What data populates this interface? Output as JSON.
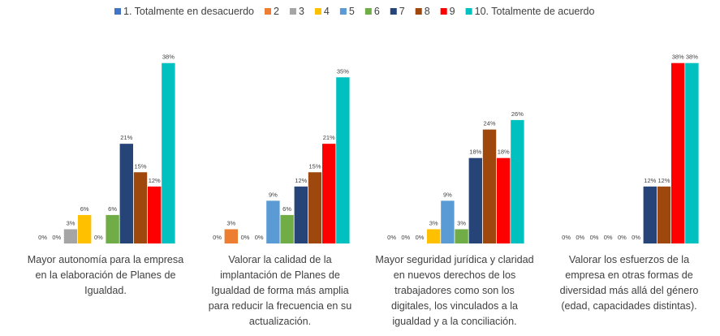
{
  "chart_data": {
    "type": "bar",
    "categories": [
      "Mayor autonomía para la empresa en la elaboración de Planes de Igualdad.",
      "Valorar la calidad de la implantación de Planes de Igualdad de forma más amplia para reducir la frecuencia en su actualización.",
      "Mayor seguridad jurídica y claridad en nuevos derechos de los trabajadores como son los digitales, los vinculados a la igualdad y a la conciliación.",
      "Valorar los esfuerzos de la empresa en otras formas de diversidad más allá del género (edad, capacidades distintas)."
    ],
    "series": [
      {
        "name": "1. Totalmente en desacuerdo",
        "color": "#4472C4",
        "values": [
          0,
          0,
          0,
          0
        ]
      },
      {
        "name": "2",
        "color": "#ED7D31",
        "values": [
          0,
          3,
          0,
          0
        ]
      },
      {
        "name": "3",
        "color": "#A5A5A5",
        "values": [
          3,
          0,
          0,
          0
        ]
      },
      {
        "name": "4",
        "color": "#FFC000",
        "values": [
          6,
          0,
          3,
          0
        ]
      },
      {
        "name": "5",
        "color": "#5B9BD5",
        "values": [
          0,
          9,
          9,
          0
        ]
      },
      {
        "name": "6",
        "color": "#70AD47",
        "values": [
          6,
          6,
          3,
          0
        ]
      },
      {
        "name": "7",
        "color": "#264478",
        "values": [
          21,
          12,
          18,
          12
        ]
      },
      {
        "name": "8",
        "color": "#9E480E",
        "values": [
          15,
          15,
          24,
          12
        ]
      },
      {
        "name": "9",
        "color": "#FF0000",
        "values": [
          12,
          21,
          18,
          38
        ]
      },
      {
        "name": "10. Totalmente de acuerdo",
        "color": "#00C0C0",
        "values": [
          38,
          35,
          26,
          38
        ]
      }
    ],
    "value_suffix": "%",
    "ylim": [
      0,
      40
    ],
    "grid": false,
    "legend_position": "top"
  }
}
